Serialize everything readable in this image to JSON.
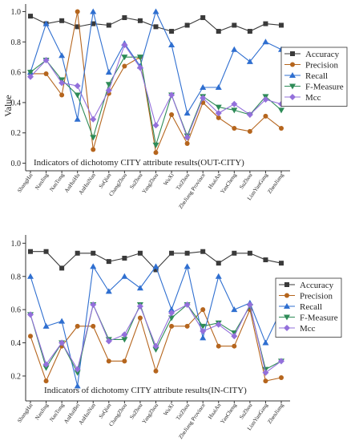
{
  "chart_data": [
    {
      "type": "line",
      "title": "Indicators of dichotomy CITY attribute results(OUT-CITY)",
      "xlabel": "",
      "ylabel": "Value",
      "ylim": [
        -0.05,
        1.05
      ],
      "yticks": [
        "0.0",
        "0.2",
        "0.4",
        "0.6",
        "0.8",
        "1.0"
      ],
      "grid": false,
      "legend_position": "right",
      "categories": [
        "ShangHai",
        "NanJing",
        "NanTong",
        "AnHuiHu",
        "AnHuiNan",
        "SuQian",
        "ChangZhou",
        "SuZhou",
        "YangZhou",
        "WuXi",
        "TaiZhou",
        "ZheJiang Province",
        "HuaiAn",
        "YanCheng",
        "SuZhou",
        "LianYunGang",
        "ZhenJiang"
      ],
      "series": [
        {
          "name": "Accuracy",
          "color": "#3a3a3a",
          "marker": "square",
          "values": [
            0.97,
            0.92,
            0.94,
            0.9,
            0.92,
            0.91,
            0.96,
            0.94,
            0.9,
            0.87,
            0.91,
            0.96,
            0.87,
            0.91,
            0.87,
            0.92,
            0.91
          ]
        },
        {
          "name": "Precision",
          "color": "#b5651d",
          "marker": "circle",
          "values": [
            0.59,
            0.59,
            0.45,
            1.0,
            0.09,
            0.46,
            0.64,
            0.7,
            0.07,
            0.32,
            0.13,
            0.4,
            0.3,
            0.23,
            0.21,
            0.31,
            0.23
          ]
        },
        {
          "name": "Recall",
          "color": "#2f6fd0",
          "marker": "triangle-up",
          "values": [
            0.6,
            0.92,
            0.71,
            0.29,
            1.0,
            0.6,
            0.79,
            0.64,
            1.0,
            0.78,
            0.33,
            0.5,
            0.5,
            0.75,
            0.67,
            0.8,
            0.75
          ]
        },
        {
          "name": "F-Measure",
          "color": "#2e8b57",
          "marker": "triangle-down",
          "values": [
            0.6,
            0.68,
            0.55,
            0.45,
            0.17,
            0.52,
            0.7,
            0.7,
            0.12,
            0.45,
            0.18,
            0.44,
            0.37,
            0.35,
            0.32,
            0.44,
            0.35
          ]
        },
        {
          "name": "Mcc",
          "color": "#9370db",
          "marker": "diamond",
          "values": [
            0.57,
            0.68,
            0.53,
            0.51,
            0.29,
            0.48,
            0.78,
            0.63,
            0.25,
            0.45,
            0.17,
            0.43,
            0.33,
            0.39,
            0.32,
            0.42,
            0.39
          ]
        }
      ]
    },
    {
      "type": "line",
      "title": "Indicators of dichotomy CITY attribute results(IN-CITY)",
      "xlabel": "",
      "ylabel": "Value",
      "ylim": [
        0.05,
        1.05
      ],
      "yticks": [
        "0.2",
        "0.4",
        "0.6",
        "0.8",
        "1.0"
      ],
      "grid": false,
      "legend_position": "right",
      "categories": [
        "ShangHai",
        "NanJing",
        "NanTong",
        "AnHuiBei",
        "AnHuiNan",
        "SuQian",
        "ChangZhou",
        "SuZhou",
        "YangZhou",
        "WuXi",
        "TaiZhou",
        "ZheJiang Province",
        "HuaiAn",
        "YanCheng",
        "SuZhou",
        "LianYunGang",
        "ZhenJiang"
      ],
      "series": [
        {
          "name": "Accuracy",
          "color": "#3a3a3a",
          "marker": "square",
          "values": [
            0.95,
            0.95,
            0.85,
            0.94,
            0.94,
            0.89,
            0.91,
            0.94,
            0.84,
            0.94,
            0.94,
            0.95,
            0.88,
            0.94,
            0.94,
            0.9,
            0.88
          ]
        },
        {
          "name": "Precision",
          "color": "#b5651d",
          "marker": "circle",
          "values": [
            0.44,
            0.17,
            0.38,
            0.5,
            0.5,
            0.29,
            0.29,
            0.55,
            0.23,
            0.5,
            0.5,
            0.6,
            0.38,
            0.38,
            0.6,
            0.17,
            0.19
          ]
        },
        {
          "name": "Recall",
          "color": "#2f6fd0",
          "marker": "triangle-up",
          "values": [
            0.8,
            0.5,
            0.53,
            0.14,
            0.86,
            0.71,
            0.8,
            0.73,
            0.86,
            0.6,
            0.86,
            0.43,
            0.8,
            0.6,
            0.64,
            0.4,
            0.6
          ]
        },
        {
          "name": "F-Measure",
          "color": "#2e8b57",
          "marker": "triangle-down",
          "values": [
            0.57,
            0.25,
            0.4,
            0.22,
            0.63,
            0.42,
            0.42,
            0.63,
            0.36,
            0.55,
            0.63,
            0.5,
            0.52,
            0.46,
            0.62,
            0.24,
            0.29
          ]
        },
        {
          "name": "Mcc",
          "color": "#9370db",
          "marker": "diamond",
          "values": [
            0.57,
            0.27,
            0.4,
            0.24,
            0.63,
            0.41,
            0.45,
            0.62,
            0.38,
            0.58,
            0.63,
            0.47,
            0.51,
            0.44,
            0.63,
            0.22,
            0.29
          ]
        }
      ]
    }
  ]
}
